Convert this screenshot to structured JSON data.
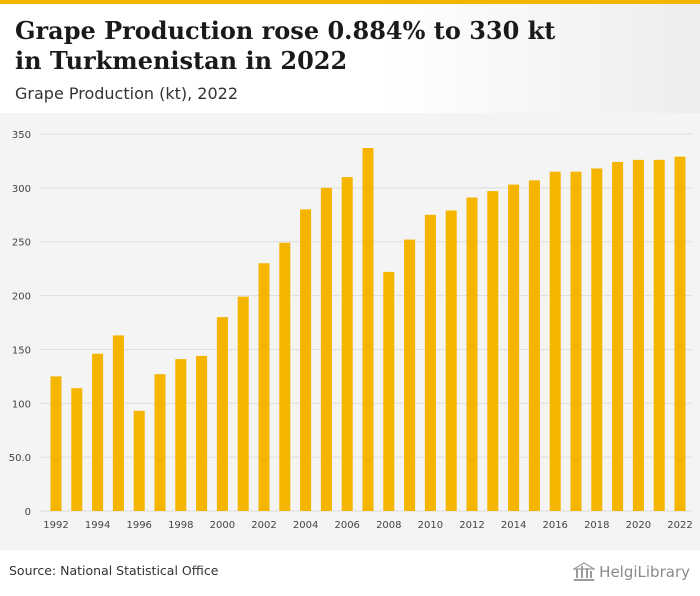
{
  "header": {
    "title": "Grape Production rose 0.884% to 330 kt in Turkmenistan in 2022",
    "subtitle": "Grape Production (kt), 2022"
  },
  "footer": {
    "source": "Source: National Statistical Office",
    "logo_text": "HelgiLibrary"
  },
  "colors": {
    "bar": "#f5b400",
    "accent": "#f5b400",
    "plot_background": "#f4f4f4",
    "gridline": "#dddddd"
  },
  "chart_data": {
    "type": "bar",
    "title": "Grape Production (kt), 2022",
    "xlabel": "",
    "ylabel": "",
    "ylim": [
      0,
      350
    ],
    "yticks": [
      "0",
      "50.0",
      "100",
      "150",
      "200",
      "250",
      "300",
      "350"
    ],
    "ytick_values": [
      0,
      50,
      100,
      150,
      200,
      250,
      300,
      350
    ],
    "categories": [
      "1992",
      "1993",
      "1994",
      "1995",
      "1996",
      "1997",
      "1998",
      "1999",
      "2000",
      "2001",
      "2002",
      "2003",
      "2004",
      "2005",
      "2006",
      "2007",
      "2008",
      "2009",
      "2010",
      "2011",
      "2012",
      "2013",
      "2014",
      "2015",
      "2016",
      "2017",
      "2018",
      "2019",
      "2020",
      "2021",
      "2022"
    ],
    "xtick_labels": [
      "1992",
      "1994",
      "1996",
      "1998",
      "2000",
      "2002",
      "2004",
      "2006",
      "2008",
      "2010",
      "2012",
      "2014",
      "2016",
      "2018",
      "2020",
      "2022"
    ],
    "values": [
      125,
      114,
      146,
      163,
      93,
      127,
      141,
      144,
      180,
      199,
      230,
      249,
      280,
      300,
      310,
      337,
      222,
      252,
      275,
      279,
      291,
      297,
      303,
      307,
      315,
      315,
      318,
      324,
      326,
      326,
      329
    ],
    "grid": true,
    "legend": "none"
  }
}
